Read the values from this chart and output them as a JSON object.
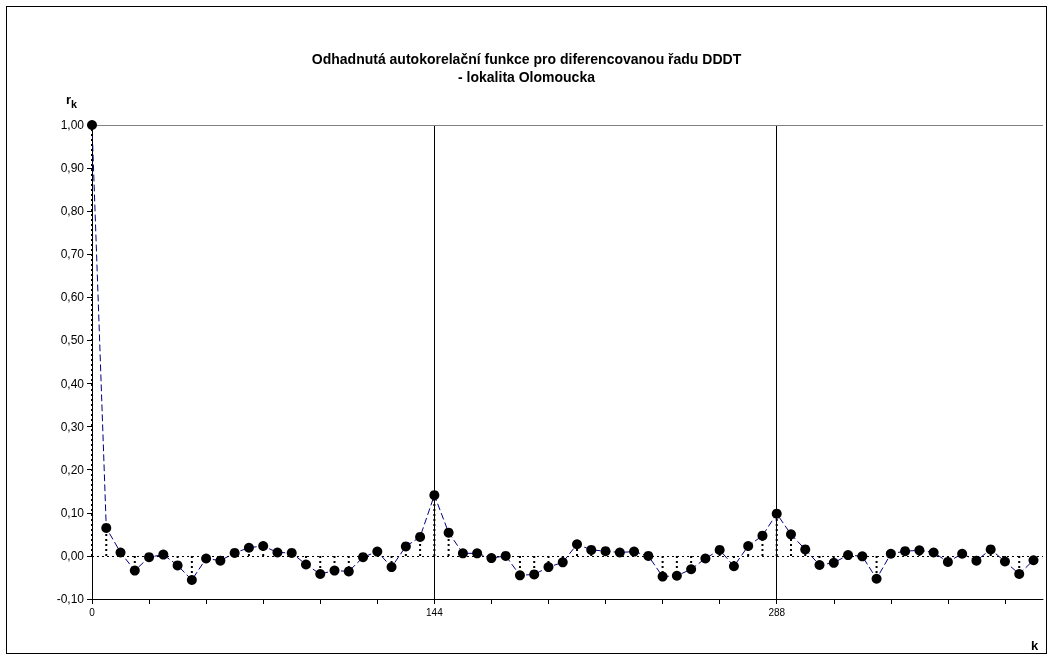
{
  "chart_data": {
    "type": "lollipop",
    "title": "Odhadnutá autokorelační funkce pro diferencovanou řadu DDDT\n- lokalita Olomoucka",
    "xlabel": "k",
    "ylabel": "r$_{k}$",
    "x": [
      0,
      6,
      12,
      18,
      24,
      30,
      36,
      42,
      48,
      54,
      60,
      66,
      72,
      78,
      84,
      90,
      96,
      102,
      108,
      114,
      120,
      126,
      132,
      138,
      144,
      150,
      156,
      162,
      168,
      174,
      180,
      186,
      192,
      198,
      204,
      210,
      216,
      222,
      228,
      234,
      240,
      246,
      252,
      258,
      264,
      270,
      276,
      282,
      288,
      294,
      300,
      306,
      312,
      318,
      324,
      330,
      336,
      342,
      348,
      354,
      360,
      366,
      372,
      378,
      384,
      390,
      396
    ],
    "series": [
      {
        "color": "#000000",
        "marker": "circle",
        "line_style": "dotted",
        "values": [
          1.0,
          0.065,
          0.008,
          -0.034,
          -0.003,
          0.003,
          -0.022,
          -0.056,
          -0.006,
          -0.011,
          0.007,
          0.019,
          0.023,
          0.008,
          0.007,
          -0.02,
          -0.042,
          -0.034,
          -0.036,
          -0.003,
          0.01,
          -0.026,
          0.022,
          0.044,
          0.141,
          0.054,
          0.006,
          0.006,
          -0.005,
          0.0,
          -0.045,
          -0.043,
          -0.026,
          -0.015,
          0.027,
          0.014,
          0.011,
          0.008,
          0.01,
          0.0,
          -0.048,
          -0.046,
          -0.031,
          -0.006,
          0.014,
          -0.024,
          0.023,
          0.047,
          0.098,
          0.05,
          0.015,
          -0.021,
          -0.016,
          0.002,
          -0.001,
          -0.053,
          0.005,
          0.011,
          0.013,
          0.008,
          -0.014,
          0.005,
          -0.011,
          0.015,
          -0.013,
          -0.042,
          -0.01
        ]
      },
      {
        "type": "line",
        "color": "#000080",
        "marker": "none",
        "line_style": "dashed",
        "values": [
          1.0,
          0.065,
          0.008,
          -0.034,
          -0.003,
          0.003,
          -0.022,
          -0.056,
          -0.006,
          -0.011,
          0.007,
          0.019,
          0.023,
          0.008,
          0.007,
          -0.02,
          -0.042,
          -0.034,
          -0.036,
          -0.003,
          0.01,
          -0.026,
          0.022,
          0.044,
          0.141,
          0.054,
          0.006,
          0.006,
          -0.005,
          0.0,
          -0.045,
          -0.043,
          -0.026,
          -0.015,
          0.027,
          0.014,
          0.011,
          0.008,
          0.01,
          0.0,
          -0.048,
          -0.046,
          -0.031,
          -0.006,
          0.014,
          -0.024,
          0.023,
          0.047,
          0.098,
          0.05,
          0.015,
          -0.021,
          -0.016,
          0.002,
          -0.001,
          -0.053,
          0.005,
          0.011,
          0.013,
          0.008,
          -0.014,
          0.005,
          -0.011,
          0.015,
          -0.013,
          -0.042,
          -0.01
        ]
      }
    ],
    "xlim": [
      0,
      400
    ],
    "xticks": [
      0,
      {
        "value": 24,
        "label": null
      },
      {
        "value": 48,
        "label": null
      },
      {
        "value": 72,
        "label": null
      },
      {
        "value": 96,
        "label": null
      },
      {
        "value": 120,
        "label": null
      },
      144,
      {
        "value": 168,
        "label": null
      },
      {
        "value": 192,
        "label": null
      },
      {
        "value": 216,
        "label": null
      },
      {
        "value": 240,
        "label": null
      },
      {
        "value": 264,
        "label": null
      },
      288,
      {
        "value": 312,
        "label": null
      },
      {
        "value": 336,
        "label": null
      },
      {
        "value": 360,
        "label": null
      },
      {
        "value": 384,
        "label": null
      }
    ],
    "ylim": [
      -0.1,
      1.0
    ],
    "yticks": [
      {
        "value": -0.1,
        "label": "-0,10"
      },
      {
        "value": 0,
        "label": "0,00"
      },
      {
        "value": 0.1,
        "label": "0,10"
      },
      {
        "value": 0.2,
        "label": "0,20"
      },
      {
        "value": 0.3,
        "label": "0,30"
      },
      {
        "value": 0.4,
        "label": "0,40"
      },
      {
        "value": 0.5,
        "label": "0,50"
      },
      {
        "value": 0.6,
        "label": "0,60"
      },
      {
        "value": 0.7,
        "label": "0,70"
      },
      {
        "value": 0.8,
        "label": "0,80"
      },
      {
        "value": 0.9,
        "label": "0,90"
      },
      {
        "value": 1.0,
        "label": "1,00"
      }
    ],
    "ref_lines": [
      {
        "axis": "x",
        "value": 144,
        "color": "#000000",
        "line_style": "solid"
      },
      {
        "axis": "x",
        "value": 288,
        "color": "#000000",
        "line_style": "solid"
      },
      {
        "axis": "y",
        "value": 1.0,
        "color": "#808080",
        "line_style": "solid"
      },
      {
        "axis": "y",
        "value": 0,
        "color": "#000000",
        "line_style": "dotted"
      }
    ],
    "grid": false
  }
}
